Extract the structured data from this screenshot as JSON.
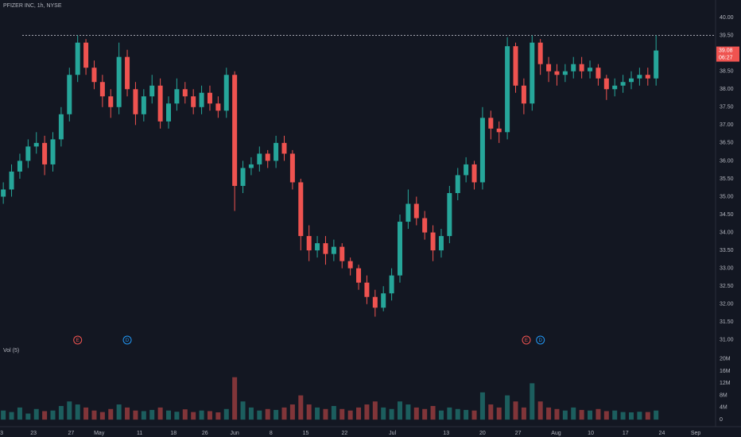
{
  "chart_data": {
    "type": "candlestick",
    "title": "PFIZER INC, 1h, NYSE",
    "volume_label": "Vol (5)",
    "countdown": "06:27",
    "up_color": "#26a69a",
    "down_color": "#ef5350",
    "grid": false,
    "reference_line": 39.5,
    "x": [
      0,
      1,
      2,
      3,
      4,
      5,
      6,
      7,
      8,
      9,
      10,
      11,
      12,
      13,
      14,
      15,
      16,
      17,
      18,
      19,
      20,
      21,
      22,
      23,
      24,
      25,
      26,
      27,
      28,
      29,
      30,
      31,
      32,
      33,
      34,
      35,
      36,
      37,
      38,
      39,
      40,
      41,
      42,
      43,
      44,
      45,
      46,
      47,
      48,
      49,
      50,
      51,
      52,
      53,
      54,
      55,
      56,
      57,
      58,
      59,
      60,
      61,
      62,
      63,
      64,
      65,
      66,
      67,
      68,
      69,
      70,
      71,
      72,
      73,
      74,
      75,
      76,
      77,
      78,
      79
    ],
    "open": [
      35.0,
      35.2,
      35.7,
      36.0,
      36.4,
      36.5,
      35.9,
      36.6,
      37.3,
      38.4,
      39.3,
      38.6,
      38.2,
      37.8,
      37.5,
      38.9,
      38.0,
      37.3,
      37.8,
      38.1,
      37.1,
      37.6,
      38.0,
      37.8,
      37.5,
      37.9,
      37.6,
      37.4,
      38.4,
      35.3,
      35.8,
      35.9,
      36.2,
      36.0,
      36.5,
      36.2,
      35.4,
      33.9,
      33.5,
      33.7,
      33.4,
      33.6,
      33.2,
      33.0,
      32.6,
      32.2,
      31.9,
      32.3,
      32.8,
      34.3,
      34.8,
      34.4,
      34.0,
      33.5,
      33.9,
      35.1,
      35.6,
      35.9,
      35.4,
      37.2,
      36.9,
      36.8,
      39.2,
      38.1,
      37.6,
      39.3,
      38.7,
      38.5,
      38.4,
      38.5,
      38.7,
      38.5,
      38.6,
      38.3,
      38.0,
      38.1,
      38.2,
      38.3,
      38.4,
      38.3
    ],
    "high": [
      35.4,
      35.9,
      36.2,
      36.6,
      36.8,
      36.7,
      36.8,
      37.5,
      38.6,
      39.5,
      39.4,
      38.8,
      38.4,
      38.0,
      39.3,
      39.1,
      38.2,
      38.0,
      38.4,
      38.3,
      37.8,
      38.3,
      38.2,
      38.0,
      38.1,
      38.1,
      37.8,
      38.6,
      38.5,
      36.0,
      36.1,
      36.4,
      36.3,
      36.7,
      36.7,
      36.3,
      35.5,
      34.2,
      33.9,
      33.9,
      33.8,
      33.7,
      33.3,
      33.1,
      32.8,
      32.4,
      32.5,
      33.0,
      34.5,
      35.2,
      35.0,
      34.6,
      34.2,
      34.1,
      35.3,
      35.8,
      36.1,
      36.0,
      37.5,
      37.4,
      37.1,
      39.45,
      39.3,
      38.3,
      39.5,
      39.4,
      38.9,
      38.7,
      38.7,
      38.9,
      38.9,
      38.8,
      38.7,
      38.4,
      38.3,
      38.4,
      38.5,
      38.6,
      38.6,
      39.5
    ],
    "low": [
      34.8,
      35.0,
      35.5,
      35.8,
      36.2,
      35.6,
      35.7,
      36.4,
      37.1,
      38.2,
      38.4,
      38.0,
      37.5,
      37.2,
      37.3,
      37.8,
      37.0,
      37.1,
      37.6,
      36.9,
      36.9,
      37.4,
      37.6,
      37.3,
      37.3,
      37.4,
      37.2,
      37.2,
      34.6,
      35.1,
      35.6,
      35.7,
      35.8,
      35.8,
      36.0,
      35.2,
      33.5,
      33.2,
      33.3,
      33.1,
      33.2,
      33.0,
      32.8,
      32.4,
      32.0,
      31.65,
      31.8,
      32.1,
      32.6,
      34.1,
      34.2,
      33.8,
      33.2,
      33.3,
      33.7,
      34.9,
      35.4,
      35.2,
      35.2,
      36.6,
      36.5,
      36.6,
      37.9,
      37.3,
      37.4,
      38.4,
      38.2,
      38.1,
      38.2,
      38.3,
      38.3,
      38.3,
      38.1,
      37.7,
      37.8,
      37.9,
      38.0,
      38.1,
      38.1,
      38.1
    ],
    "close": [
      35.2,
      35.7,
      36.0,
      36.4,
      36.5,
      35.9,
      36.6,
      37.3,
      38.4,
      39.3,
      38.6,
      38.2,
      37.8,
      37.5,
      38.9,
      38.0,
      37.3,
      37.8,
      38.1,
      37.1,
      37.6,
      38.0,
      37.8,
      37.5,
      37.9,
      37.6,
      37.4,
      38.4,
      35.3,
      35.8,
      35.9,
      36.2,
      36.0,
      36.5,
      36.2,
      35.4,
      33.9,
      33.5,
      33.7,
      33.4,
      33.6,
      33.2,
      33.0,
      32.6,
      32.2,
      31.9,
      32.3,
      32.8,
      34.3,
      34.8,
      34.4,
      34.0,
      33.5,
      33.9,
      35.1,
      35.6,
      35.9,
      35.4,
      37.2,
      36.9,
      36.8,
      39.2,
      38.1,
      37.6,
      39.3,
      38.7,
      38.5,
      38.4,
      38.5,
      38.7,
      38.5,
      38.6,
      38.3,
      38.0,
      38.1,
      38.2,
      38.3,
      38.4,
      38.3,
      39.08
    ],
    "volume": [
      3,
      2.5,
      4,
      2,
      3.5,
      2.8,
      3,
      4.5,
      6,
      5,
      4,
      3,
      2.5,
      3.5,
      5,
      4,
      3,
      2.8,
      3.2,
      4,
      3,
      2.6,
      3.4,
      2.5,
      3,
      2.8,
      2.4,
      3.5,
      14,
      6,
      4,
      3,
      3.5,
      3.2,
      4,
      5,
      8,
      5,
      4,
      3.5,
      4.5,
      3.5,
      3,
      4,
      5,
      6,
      4,
      3.5,
      6,
      5,
      4,
      3.5,
      4.5,
      3,
      4,
      3.5,
      3.2,
      3,
      9,
      5,
      4,
      8,
      6,
      4,
      12,
      6,
      4,
      3.5,
      3,
      4,
      3.2,
      3,
      3.5,
      2.8,
      3,
      2.5,
      2.4,
      2.6,
      2.5,
      3
    ],
    "xlim": [
      -0.4,
      86.2
    ],
    "xticks": [
      {
        "value": -0.2,
        "label": "3"
      },
      {
        "value": 3.65,
        "label": "23"
      },
      {
        "value": 8.2,
        "label": "27"
      },
      {
        "value": 11.6,
        "label": "May"
      },
      {
        "value": 16.5,
        "label": "11"
      },
      {
        "value": 20.6,
        "label": "18"
      },
      {
        "value": 24.4,
        "label": "26"
      },
      {
        "value": 28.0,
        "label": "Jun"
      },
      {
        "value": 32.4,
        "label": "8"
      },
      {
        "value": 36.6,
        "label": "15"
      },
      {
        "value": 41.3,
        "label": "22"
      },
      {
        "value": 47.1,
        "label": "Jul"
      },
      {
        "value": 53.6,
        "label": "13"
      },
      {
        "value": 58.0,
        "label": "20"
      },
      {
        "value": 62.3,
        "label": "27"
      },
      {
        "value": 66.9,
        "label": "Aug"
      },
      {
        "value": 71.1,
        "label": "10"
      },
      {
        "value": 75.3,
        "label": "17"
      },
      {
        "value": 79.7,
        "label": "24"
      },
      {
        "value": 83.8,
        "label": "Sep"
      }
    ],
    "ylim": [
      30.73,
      40.49
    ],
    "yticks": [
      {
        "value": 31,
        "label": "31.00"
      },
      {
        "value": 31.5,
        "label": "31.50"
      },
      {
        "value": 32,
        "label": "32.00"
      },
      {
        "value": 32.5,
        "label": "32.50"
      },
      {
        "value": 33,
        "label": "33.00"
      },
      {
        "value": 33.5,
        "label": "33.50"
      },
      {
        "value": 34,
        "label": "34.00"
      },
      {
        "value": 34.5,
        "label": "34.50"
      },
      {
        "value": 35,
        "label": "35.00"
      },
      {
        "value": 35.5,
        "label": "35.50"
      },
      {
        "value": 36,
        "label": "36.00"
      },
      {
        "value": 36.5,
        "label": "36.50"
      },
      {
        "value": 37,
        "label": "37.00"
      },
      {
        "value": 37.5,
        "label": "37.50"
      },
      {
        "value": 38,
        "label": "38.00"
      },
      {
        "value": 38.5,
        "label": "38.50"
      },
      {
        "value": 39,
        "label": "39.00"
      },
      {
        "value": 39.5,
        "label": "39.50"
      },
      {
        "value": 40,
        "label": "40.00"
      }
    ],
    "vol_ylim": [
      -1.8,
      21.8
    ],
    "vol_yticks": [
      0,
      {
        "value": 4,
        "label": "4M"
      },
      {
        "value": 8,
        "label": "8M"
      },
      {
        "value": 12,
        "label": "12M"
      },
      {
        "value": 16,
        "label": "16M"
      },
      {
        "value": 20,
        "label": "20M"
      }
    ],
    "events": [
      {
        "x": 9.0,
        "label": "E",
        "color": "#ef5350"
      },
      {
        "x": 15.0,
        "label": "D",
        "color": "#2196f3"
      },
      {
        "x": 63.3,
        "label": "E",
        "color": "#ef5350"
      },
      {
        "x": 65.0,
        "label": "D",
        "color": "#2196f3"
      }
    ]
  }
}
